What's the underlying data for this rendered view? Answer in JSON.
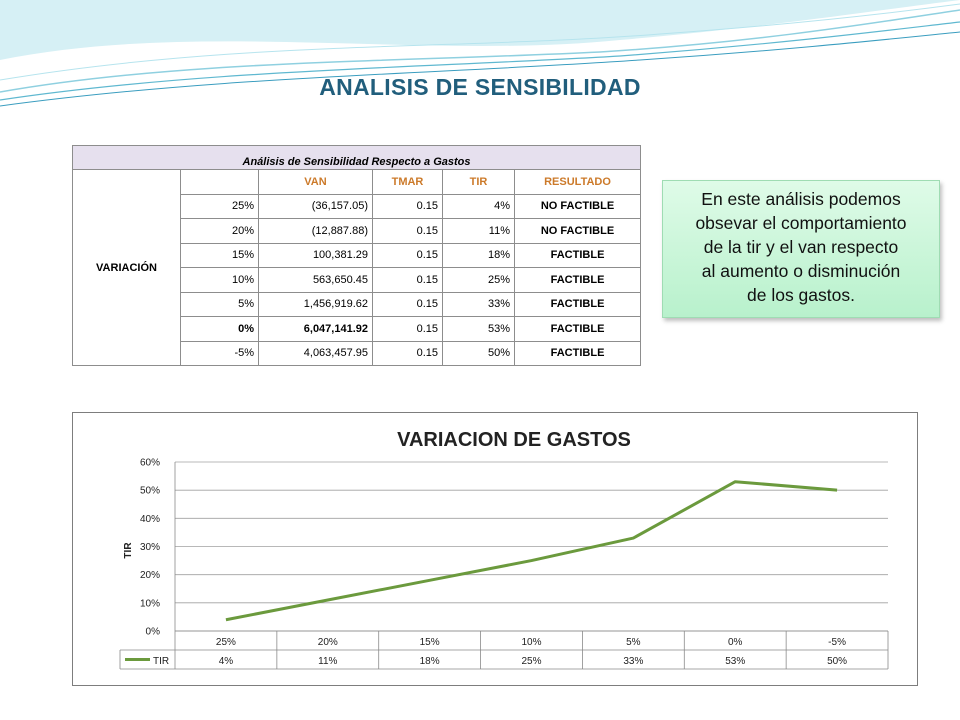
{
  "page": {
    "title": "ANALISIS DE SENSIBILIDAD"
  },
  "table": {
    "caption": "Análisis de Sensibilidad Respecto a Gastos",
    "row_label": "VARIACIÓN",
    "headers": [
      "",
      "VAN",
      "TMAR",
      "TIR",
      "RESULTADO"
    ],
    "rows": [
      [
        "25%",
        "(36,157.05)",
        "0.15",
        "4%",
        "NO FACTIBLE"
      ],
      [
        "20%",
        "(12,887.88)",
        "0.15",
        "11%",
        "NO FACTIBLE"
      ],
      [
        "15%",
        "100,381.29",
        "0.15",
        "18%",
        "FACTIBLE"
      ],
      [
        "10%",
        "563,650.45",
        "0.15",
        "25%",
        "FACTIBLE"
      ],
      [
        "5%",
        "1,456,919.62",
        "0.15",
        "33%",
        "FACTIBLE"
      ],
      [
        "0%",
        "6,047,141.92",
        "0.15",
        "53%",
        "FACTIBLE"
      ],
      [
        "-5%",
        "4,063,457.95",
        "0.15",
        "50%",
        "FACTIBLE"
      ]
    ],
    "bold_row": 5
  },
  "callout": {
    "lines": [
      "En este análisis podemos",
      "obsevar el comportamiento",
      "de la tir y el van respecto",
      "al aumento o disminución",
      "de los gastos."
    ]
  },
  "chart_data": {
    "type": "line",
    "title": "VARIACION DE GASTOS",
    "ylabel": "TIR",
    "xlabel": "",
    "categories": [
      "25%",
      "20%",
      "15%",
      "10%",
      "5%",
      "0%",
      "-5%"
    ],
    "series": [
      {
        "name": "TIR",
        "values": [
          4,
          11,
          18,
          25,
          33,
          53,
          50
        ],
        "labels": [
          "4%",
          "11%",
          "18%",
          "25%",
          "33%",
          "53%",
          "50%"
        ],
        "color": "#6b9a3d"
      }
    ],
    "ylim": [
      0,
      60
    ],
    "yticks": [
      "0%",
      "10%",
      "20%",
      "30%",
      "40%",
      "50%",
      "60%"
    ],
    "grid": true,
    "legend": "data-table-left"
  },
  "colors": {
    "accent_title": "#215e7c",
    "header_text": "#cc7a2a",
    "line": "#6b9a3d",
    "callout_bg": "#c8f5d6"
  }
}
